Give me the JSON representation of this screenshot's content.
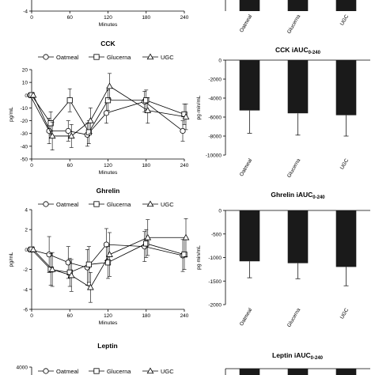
{
  "chart_data": [
    {
      "id": "top_line_partial",
      "type": "line",
      "x_ticks": [
        0,
        60,
        120,
        180,
        240
      ],
      "y_ticks": [
        -4
      ],
      "xlabel": "Minutes",
      "ylabel": ""
    },
    {
      "id": "top_bar_partial",
      "type": "bar",
      "categories": [
        "Oatmeal",
        "Glucerna",
        "UGC"
      ]
    },
    {
      "id": "cck_line",
      "type": "line",
      "title": "CCK",
      "xlabel": "Minutes",
      "ylabel": "pg/mL",
      "ylim": [
        -50,
        20
      ],
      "xlim": [
        0,
        240
      ],
      "x_ticks": [
        0,
        60,
        120,
        180,
        240
      ],
      "y_ticks": [
        20,
        10,
        0,
        -10,
        -20,
        -30,
        -40,
        -50
      ],
      "x": [
        0,
        30,
        60,
        90,
        120,
        180,
        240
      ],
      "legend": [
        "Oatmeal",
        "Glucerna",
        "UGC"
      ],
      "series": [
        {
          "name": "Oatmeal",
          "marker": "circle",
          "values": [
            0,
            -28,
            -28,
            -31,
            -14,
            -5,
            -28
          ],
          "err": [
            0,
            10,
            8,
            9,
            8,
            8,
            8
          ]
        },
        {
          "name": "Glucerna",
          "marker": "square",
          "values": [
            0,
            -22,
            -4,
            -29,
            -4,
            -4,
            -15
          ],
          "err": [
            0,
            9,
            9,
            9,
            8,
            8,
            8
          ]
        },
        {
          "name": "UGC",
          "marker": "triangle",
          "values": [
            0,
            -32,
            -32,
            -20,
            7,
            -12,
            -17
          ],
          "err": [
            0,
            11,
            9,
            10,
            10,
            10,
            10
          ]
        }
      ]
    },
    {
      "id": "cck_bar",
      "type": "bar",
      "title_main": "CCK iAUC",
      "title_sub": "0-240",
      "ylabel": "pg·min/mL",
      "ylim": [
        -10000,
        0
      ],
      "y_ticks": [
        0,
        -2000,
        -4000,
        -6000,
        -8000,
        -10000
      ],
      "categories": [
        "Oatmeal",
        "Glucerna",
        "UGC"
      ],
      "values": [
        -5300,
        -5600,
        -5800
      ],
      "err": [
        2400,
        2300,
        2200
      ]
    },
    {
      "id": "ghrelin_line",
      "type": "line",
      "title": "Ghrelin",
      "xlabel": "Minutes",
      "ylabel": "pg/mL",
      "ylim": [
        -6,
        4
      ],
      "xlim": [
        0,
        240
      ],
      "x_ticks": [
        0,
        60,
        120,
        180,
        240
      ],
      "y_ticks": [
        4,
        2,
        0,
        -2,
        -4,
        -6
      ],
      "x": [
        0,
        30,
        60,
        90,
        120,
        180,
        240
      ],
      "legend": [
        "Oatmeal",
        "Glucerna",
        "UGC"
      ],
      "series": [
        {
          "name": "Oatmeal",
          "marker": "circle",
          "values": [
            0,
            -0.5,
            -1.3,
            -1.8,
            0.5,
            0.3,
            -0.6
          ],
          "err": [
            0,
            1.8,
            1.6,
            1.8,
            1.6,
            1.5,
            1.6
          ]
        },
        {
          "name": "Glucerna",
          "marker": "square",
          "values": [
            0,
            -2.0,
            -2.3,
            -1.5,
            -1.3,
            0.6,
            -0.5
          ],
          "err": [
            0,
            1.6,
            1.4,
            1.8,
            1.6,
            1.4,
            1.5
          ]
        },
        {
          "name": "UGC",
          "marker": "triangle",
          "values": [
            0,
            -2.0,
            -2.6,
            -3.8,
            -0.5,
            1.2,
            1.2
          ],
          "err": [
            0,
            1.7,
            1.6,
            1.5,
            2.2,
            1.8,
            1.9
          ]
        }
      ]
    },
    {
      "id": "ghrelin_bar",
      "type": "bar",
      "title_main": "Ghrelin iAUC",
      "title_sub": "0-240",
      "ylabel": "pg·min/mL",
      "ylim": [
        -2000,
        0
      ],
      "y_ticks": [
        0,
        -500,
        -1000,
        -1500,
        -2000
      ],
      "categories": [
        "Oatmeal",
        "Glucerna",
        "UGC"
      ],
      "values": [
        -1080,
        -1120,
        -1200
      ],
      "err": [
        350,
        330,
        400
      ]
    },
    {
      "id": "leptin_line_partial",
      "type": "line",
      "title": "Leptin",
      "ylabel": "",
      "y_ticks": [
        4000
      ],
      "legend": [
        "Oatmeal",
        "Glucerna",
        "UGC"
      ]
    },
    {
      "id": "leptin_bar_partial",
      "type": "bar",
      "title_main": "Leptin iAUC",
      "title_sub": "0-240"
    }
  ]
}
